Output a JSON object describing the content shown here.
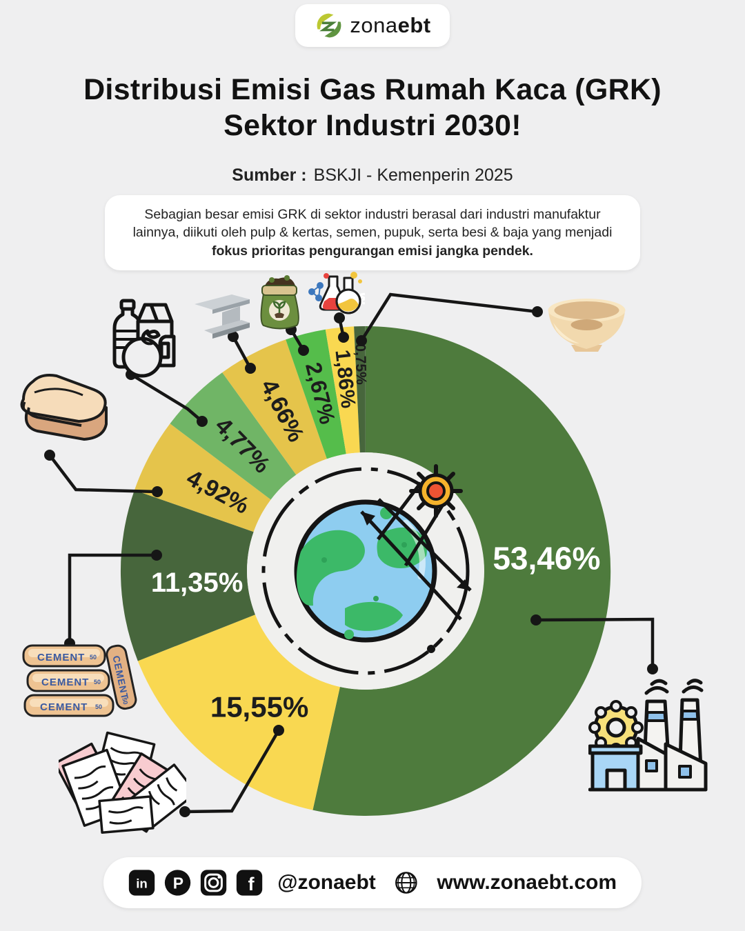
{
  "logo": {
    "brand_zona": "zona",
    "brand_ebt": "ebt"
  },
  "header": {
    "title_line1": "Distribusi Emisi Gas Rumah Kaca (GRK)",
    "title_line2": "Sektor Industri 2030!",
    "source_label": "Sumber :",
    "source_value": "BSKJI - Kemenperin 2025"
  },
  "summary": {
    "text_regular": "Sebagian besar emisi GRK di sektor industri berasal dari industri manufaktur lainnya, diikuti oleh pulp & kertas, semen, pupuk, serta besi & baja yang menjadi ",
    "text_bold": "fokus prioritas pengurangan emisi jangka pendek."
  },
  "chart_data": {
    "type": "pie",
    "subtype": "donut",
    "title": "Distribusi Emisi Gas Rumah Kaca (GRK) Sektor Industri 2030",
    "unit": "%",
    "start_angle_deg": 0,
    "direction": "clockwise",
    "center_illustration": "earth-greenhouse-sun-icon",
    "slices": [
      {
        "label": "53,46%",
        "value": 53.46,
        "color": "#4e7b3d",
        "text_color": "#ffffff",
        "icon": "factory-icon"
      },
      {
        "label": "15,55%",
        "value": 15.55,
        "color": "#f9d851",
        "text_color": "#1d1d1d",
        "icon": "paper-icon"
      },
      {
        "label": "11,35%",
        "value": 11.35,
        "color": "#47663c",
        "text_color": "#ffffff",
        "icon": "cement-bags-icon"
      },
      {
        "label": "4,92%",
        "value": 4.92,
        "color": "#e5c44b",
        "text_color": "#1d1d1d",
        "icon": "textile-icon"
      },
      {
        "label": "4,77%",
        "value": 4.77,
        "color": "#70b566",
        "text_color": "#1d1d1d",
        "icon": "food-beverage-icon"
      },
      {
        "label": "4,66%",
        "value": 4.66,
        "color": "#e5c44b",
        "text_color": "#1d1d1d",
        "icon": "steel-beam-icon"
      },
      {
        "label": "2,67%",
        "value": 2.67,
        "color": "#55bd4b",
        "text_color": "#1d1d1d",
        "icon": "fertilizer-icon"
      },
      {
        "label": "1,86%",
        "value": 1.86,
        "color": "#f9d851",
        "text_color": "#1d1d1d",
        "icon": "chemistry-icon"
      },
      {
        "label": "0,75%",
        "value": 0.75,
        "color": "#47663c",
        "text_color": "#1d1d1d",
        "icon": "ceramic-bowl-icon"
      }
    ]
  },
  "icons": {
    "cement_label": "CEMENT",
    "cement_weight": "50"
  },
  "footer": {
    "handle": "@zonaebt",
    "website": "www.zonaebt.com",
    "social_icons": [
      "linkedin-icon",
      "pinterest-icon",
      "instagram-icon",
      "facebook-icon"
    ]
  },
  "colors": {
    "background": "#efeff0",
    "card": "#ffffff",
    "callout_line": "#161616",
    "green_main": "#4e7b3d",
    "green_dark": "#47663c",
    "green_mid": "#70b566",
    "green_bright": "#55bd4b",
    "yellow_bright": "#f9d851",
    "yellow_mustard": "#e5c44b"
  }
}
